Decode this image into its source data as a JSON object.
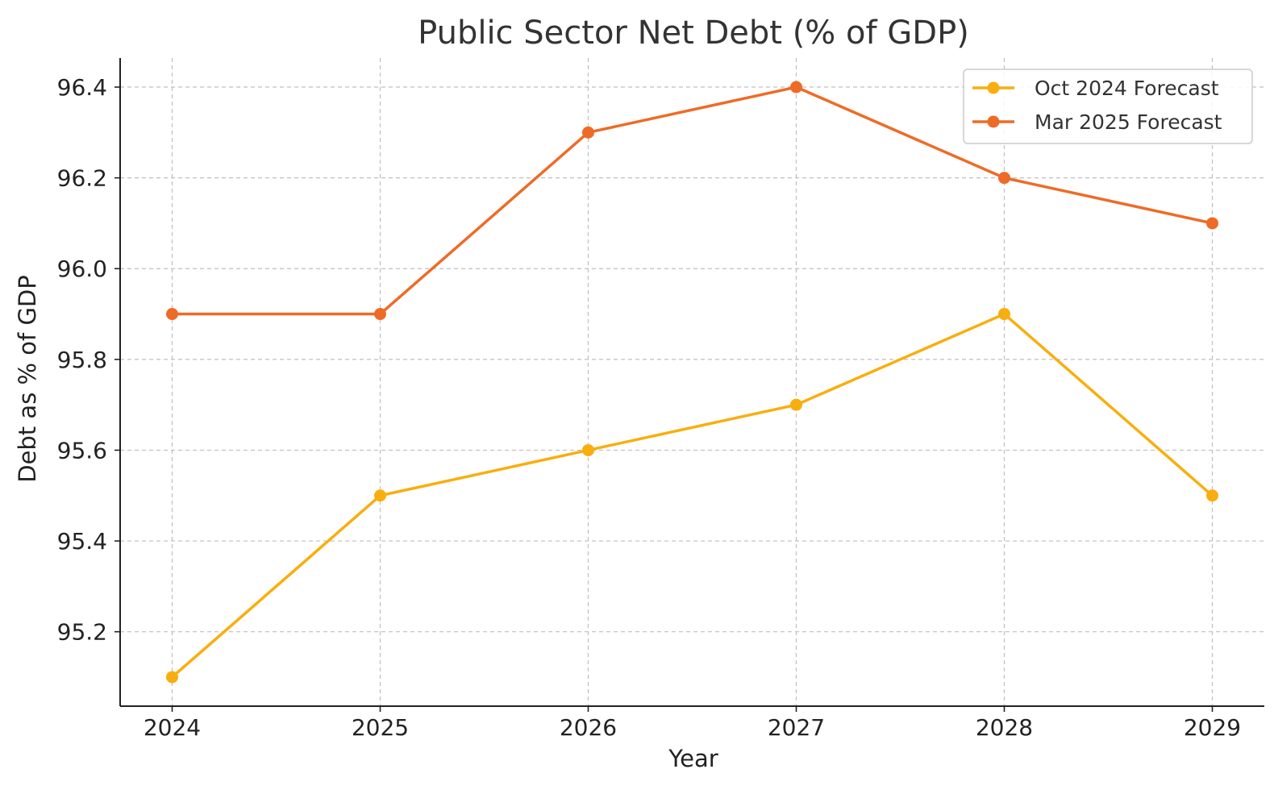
{
  "chart_data": {
    "type": "line",
    "title": "Public Sector Net Debt (% of GDP)",
    "xlabel": "Year",
    "ylabel": "Debt as % of GDP",
    "categories": [
      "2024",
      "2025",
      "2026",
      "2027",
      "2028",
      "2029"
    ],
    "x": [
      2024,
      2025,
      2026,
      2027,
      2028,
      2029
    ],
    "xlim": [
      2023.75,
      2029.25
    ],
    "ylim": [
      95.036,
      96.464
    ],
    "yticks": [
      95.2,
      95.4,
      95.6,
      95.8,
      96.0,
      96.2,
      96.4
    ],
    "ytick_labels": [
      "95.2",
      "95.4",
      "95.6",
      "95.8",
      "96.0",
      "96.2",
      "96.4"
    ],
    "grid": true,
    "legend_position": "top-right",
    "series": [
      {
        "name": "Oct 2024 Forecast",
        "color": "#F9AE0F",
        "values": [
          95.1,
          95.5,
          95.6,
          95.7,
          95.9,
          95.5
        ]
      },
      {
        "name": "Mar 2025 Forecast",
        "color": "#EE6B27",
        "values": [
          95.9,
          95.9,
          96.3,
          96.4,
          96.2,
          96.1
        ]
      }
    ]
  }
}
